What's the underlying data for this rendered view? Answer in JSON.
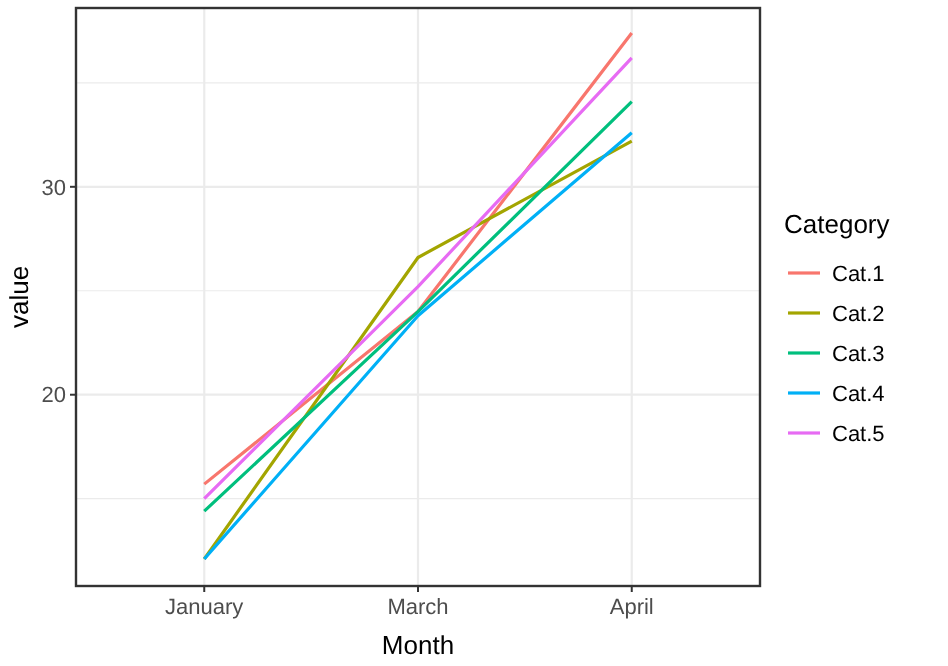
{
  "chart_data": {
    "type": "line",
    "xlabel": "Month",
    "ylabel": "value",
    "legend_title": "Category",
    "categories": [
      "January",
      "March",
      "April"
    ],
    "ylim": [
      10.8,
      38.6
    ],
    "yticks": [
      {
        "value": 15,
        "label": null
      },
      20,
      {
        "value": 25,
        "label": null
      },
      30,
      {
        "value": 35,
        "label": null
      }
    ],
    "grid": true,
    "legend": "right",
    "marker": "none",
    "line_style": "solid",
    "series": [
      {
        "name": "Cat.1",
        "color": "#f8766d",
        "values": [
          15.7,
          24.0,
          37.4
        ]
      },
      {
        "name": "Cat.2",
        "color": "#a3a500",
        "values": [
          12.1,
          26.6,
          32.2
        ]
      },
      {
        "name": "Cat.3",
        "color": "#00bf7d",
        "values": [
          14.4,
          24.0,
          34.1
        ]
      },
      {
        "name": "Cat.4",
        "color": "#00b0f6",
        "values": [
          12.1,
          23.8,
          32.6
        ]
      },
      {
        "name": "Cat.5",
        "color": "#e76bf3",
        "values": [
          15.0,
          25.2,
          36.2
        ]
      }
    ]
  }
}
